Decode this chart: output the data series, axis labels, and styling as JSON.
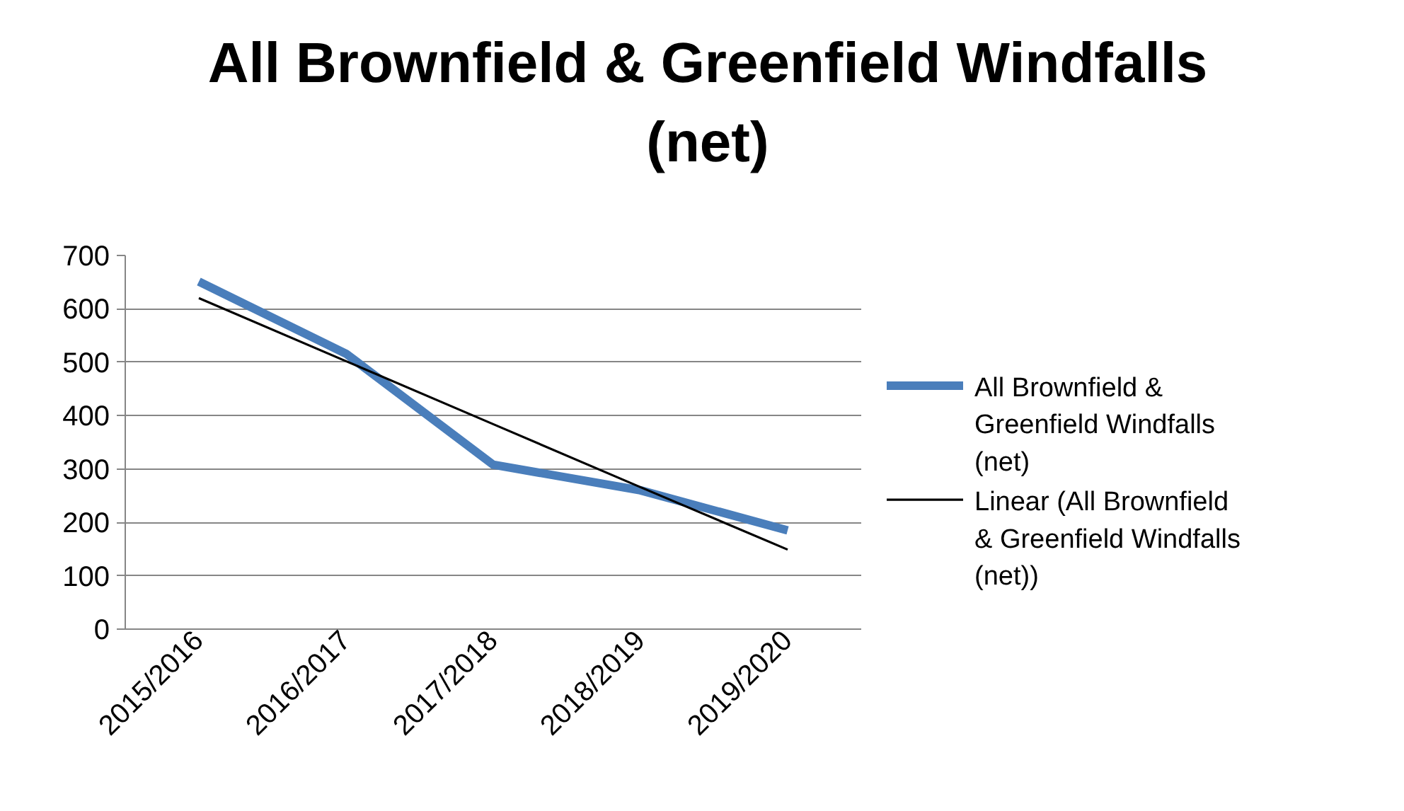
{
  "chart_data": {
    "type": "line",
    "title": "All Brownfield & Greenfield Windfalls (net)",
    "categories": [
      "2015/2016",
      "2016/2017",
      "2017/2018",
      "2018/2019",
      "2019/2020"
    ],
    "series": [
      {
        "name": "All Brownfield & Greenfield Windfalls (net)",
        "color": "#4a7ebb",
        "values": [
          651,
          516,
          308,
          260,
          185
        ]
      },
      {
        "name": "Linear (All Brownfield & Greenfield Windfalls (net))",
        "color": "#000000",
        "values": [
          620,
          502,
          384,
          266,
          149
        ]
      }
    ],
    "ylim": [
      0,
      700
    ],
    "yticks": [
      0,
      100,
      200,
      300,
      400,
      500,
      600,
      700
    ],
    "grid": "y",
    "legend": "right",
    "marker": "none",
    "line_style": "solid"
  }
}
